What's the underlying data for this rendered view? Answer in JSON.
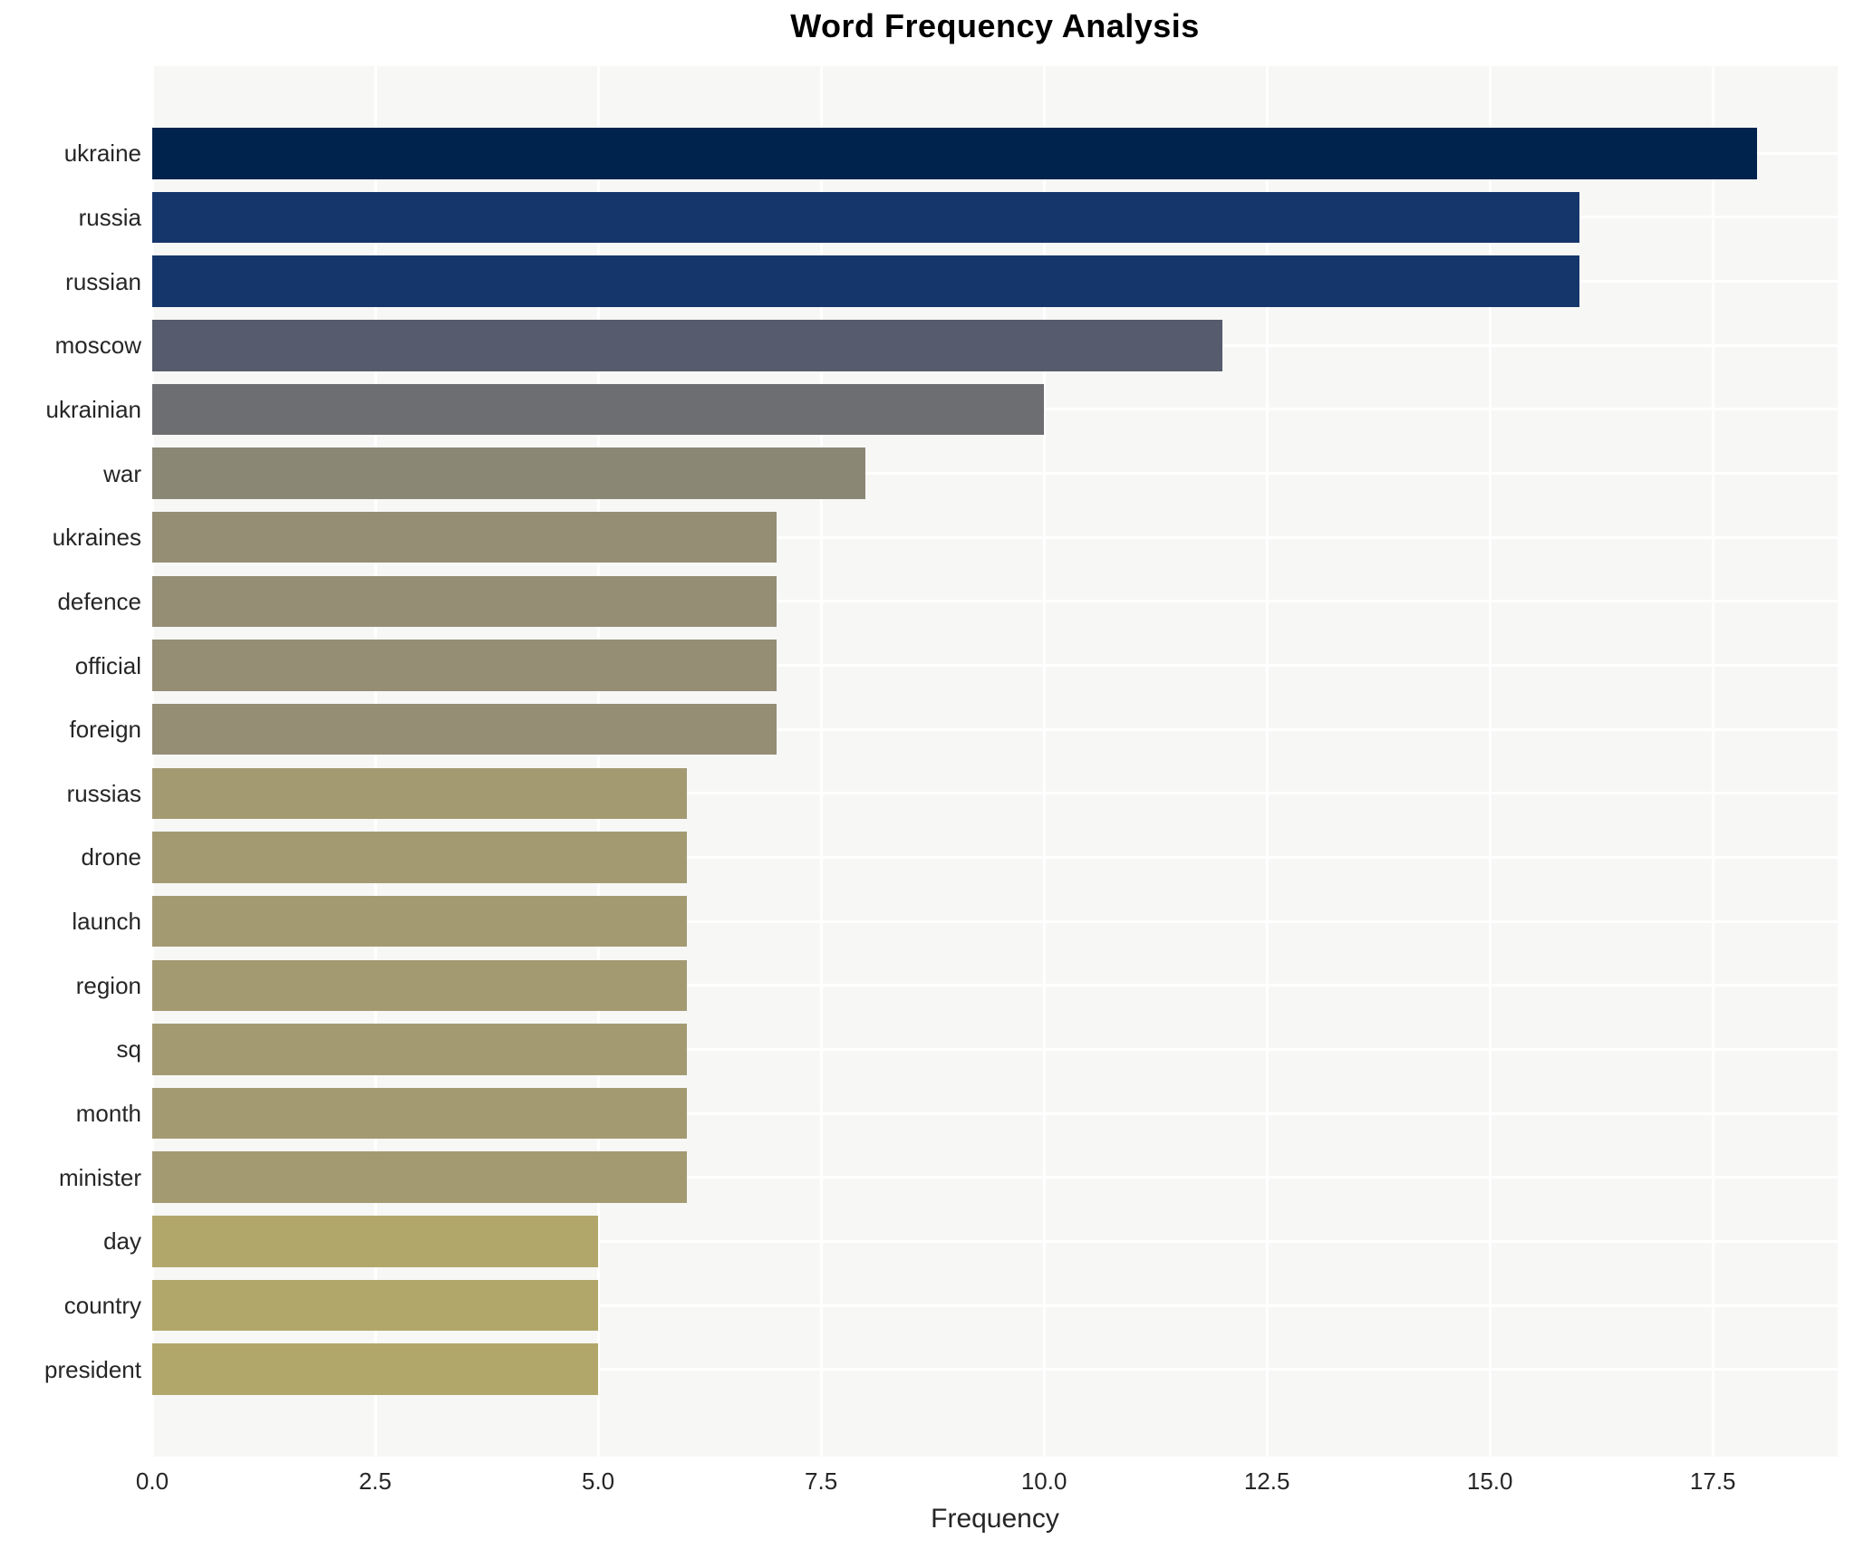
{
  "chart_data": {
    "type": "bar",
    "orientation": "horizontal",
    "title": "Word Frequency Analysis",
    "xlabel": "Frequency",
    "ylabel": "",
    "categories": [
      "ukraine",
      "russia",
      "russian",
      "moscow",
      "ukrainian",
      "war",
      "ukraines",
      "defence",
      "official",
      "foreign",
      "russias",
      "drone",
      "launch",
      "region",
      "sq",
      "month",
      "minister",
      "day",
      "country",
      "president"
    ],
    "values": [
      18,
      16,
      16,
      12,
      10,
      8,
      7,
      7,
      7,
      7,
      6,
      6,
      6,
      6,
      6,
      6,
      6,
      5,
      5,
      5
    ],
    "bar_colors": [
      "#00234d",
      "#15366b",
      "#15366b",
      "#565c6d",
      "#6d6e71",
      "#8a8775",
      "#958e75",
      "#958e75",
      "#958e75",
      "#958e75",
      "#a49a72",
      "#a49a72",
      "#a49a72",
      "#a49a72",
      "#a49a72",
      "#a49a72",
      "#a49a72",
      "#b2a76b",
      "#b2a76b",
      "#b2a76b"
    ],
    "xlim": [
      0,
      18.9
    ],
    "xticks": [
      0,
      2.5,
      5,
      7.5,
      10,
      12.5,
      15,
      17.5
    ],
    "xtick_labels": [
      "0.0",
      "2.5",
      "5.0",
      "7.5",
      "10.0",
      "12.5",
      "15.0",
      "17.5"
    ],
    "grid": "on",
    "grid_color": "#ffffff",
    "plot_background": "#f7f7f6",
    "figure_background": "#ffffff",
    "legend": "none",
    "bar_band_fraction": 0.8
  }
}
